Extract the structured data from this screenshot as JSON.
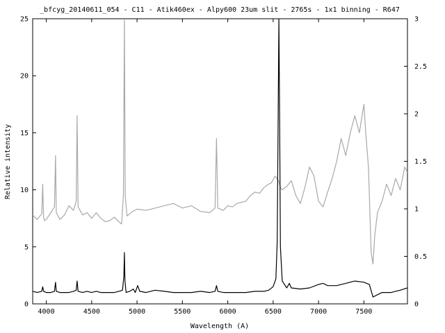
{
  "chart_data": {
    "type": "line",
    "title": "_bfcyg_20140611_054 - C11 - Atik460ex - Alpy600 23um slit - 2765s - 1x1 binning - R647",
    "xlabel": "Wavelength (A)",
    "ylabel": "Relative intensity",
    "xlim": [
      3850,
      7980
    ],
    "ylim_left": [
      0,
      25
    ],
    "ylim_right": [
      0,
      3
    ],
    "x_ticks": [
      4000,
      4500,
      5000,
      5500,
      6000,
      6500,
      7000,
      7500
    ],
    "y_ticks_left": [
      0,
      5,
      10,
      15,
      20,
      25
    ],
    "y_ticks_right": [
      "0",
      "0.5",
      "1",
      "1.5",
      "2",
      "2.5",
      "3"
    ],
    "grid": false,
    "legend": "none",
    "series": [
      {
        "axis": "left",
        "color": "#000000",
        "x": [
          3850,
          3900,
          3950,
          3960,
          3970,
          4000,
          4050,
          4090,
          4102,
          4110,
          4150,
          4200,
          4250,
          4300,
          4330,
          4340,
          4350,
          4400,
          4450,
          4500,
          4550,
          4600,
          4650,
          4700,
          4750,
          4800,
          4840,
          4855,
          4861,
          4867,
          4880,
          4920,
          4959,
          4980,
          5007,
          5030,
          5100,
          5200,
          5300,
          5400,
          5500,
          5600,
          5700,
          5800,
          5860,
          5876,
          5890,
          5950,
          6000,
          6100,
          6200,
          6300,
          6400,
          6450,
          6500,
          6530,
          6545,
          6555,
          6563,
          6572,
          6580,
          6600,
          6650,
          6678,
          6700,
          6800,
          6900,
          7000,
          7050,
          7100,
          7200,
          7300,
          7400,
          7500,
          7560,
          7600,
          7650,
          7700,
          7800,
          7900,
          7980
        ],
        "y": [
          1.1,
          1.0,
          1.1,
          1.5,
          1.1,
          1.0,
          1.0,
          1.1,
          1.9,
          1.1,
          1.0,
          1.0,
          1.0,
          1.1,
          1.2,
          2.0,
          1.1,
          1.0,
          1.1,
          1.0,
          1.1,
          1.0,
          1.0,
          1.0,
          1.0,
          1.1,
          1.2,
          2.5,
          4.5,
          2.0,
          1.0,
          1.1,
          1.3,
          1.0,
          1.6,
          1.1,
          1.0,
          1.2,
          1.1,
          1.0,
          1.0,
          1.0,
          1.1,
          1.0,
          1.1,
          1.6,
          1.1,
          1.0,
          1.0,
          1.0,
          1.0,
          1.1,
          1.1,
          1.2,
          1.5,
          2.2,
          5.5,
          16,
          25,
          16,
          5,
          2.0,
          1.4,
          1.8,
          1.4,
          1.3,
          1.4,
          1.7,
          1.8,
          1.6,
          1.6,
          1.8,
          2.0,
          1.9,
          1.7,
          0.6,
          0.8,
          1.0,
          1.0,
          1.2,
          1.4
        ]
      },
      {
        "axis": "left",
        "color": "#a8a8a8",
        "x": [
          3850,
          3900,
          3950,
          3960,
          3970,
          3980,
          4000,
          4050,
          4090,
          4102,
          4110,
          4150,
          4200,
          4250,
          4300,
          4330,
          4340,
          4350,
          4400,
          4450,
          4500,
          4550,
          4600,
          4650,
          4700,
          4750,
          4800,
          4830,
          4850,
          4861,
          4870,
          4890,
          4950,
          5000,
          5100,
          5200,
          5300,
          5400,
          5500,
          5600,
          5700,
          5800,
          5860,
          5876,
          5890,
          5950,
          6000,
          6050,
          6100,
          6200,
          6250,
          6300,
          6350,
          6400,
          6450,
          6480,
          6520,
          6560,
          6580,
          6600,
          6650,
          6700,
          6750,
          6800,
          6850,
          6900,
          6950,
          7000,
          7050,
          7100,
          7150,
          7200,
          7250,
          7300,
          7350,
          7400,
          7450,
          7500,
          7520,
          7550,
          7580,
          7600,
          7620,
          7650,
          7700,
          7750,
          7800,
          7850,
          7900,
          7950,
          7980
        ],
        "y": [
          7.8,
          7.4,
          7.9,
          10.5,
          7.6,
          7.3,
          7.4,
          8.0,
          8.5,
          13.0,
          8.0,
          7.4,
          7.8,
          8.6,
          8.2,
          9.0,
          16.5,
          8.5,
          7.8,
          8.0,
          7.5,
          8.0,
          7.5,
          7.2,
          7.3,
          7.6,
          7.2,
          7.0,
          9.5,
          25.0,
          9.5,
          7.7,
          8.1,
          8.3,
          8.2,
          8.4,
          8.6,
          8.8,
          8.4,
          8.6,
          8.1,
          8.0,
          8.4,
          14.5,
          8.4,
          8.2,
          8.6,
          8.5,
          8.8,
          9.0,
          9.5,
          9.8,
          9.7,
          10.2,
          10.5,
          10.6,
          11.2,
          10.8,
          10.2,
          10.0,
          10.3,
          10.8,
          9.5,
          8.8,
          10.2,
          12.0,
          11.2,
          9.0,
          8.5,
          9.8,
          11.0,
          12.5,
          14.5,
          13.0,
          15.0,
          16.5,
          15.0,
          17.5,
          15.0,
          12.0,
          4.5,
          3.5,
          6.0,
          8.0,
          9.0,
          10.5,
          9.5,
          11.0,
          10.0,
          12.0,
          11.5
        ]
      }
    ]
  }
}
